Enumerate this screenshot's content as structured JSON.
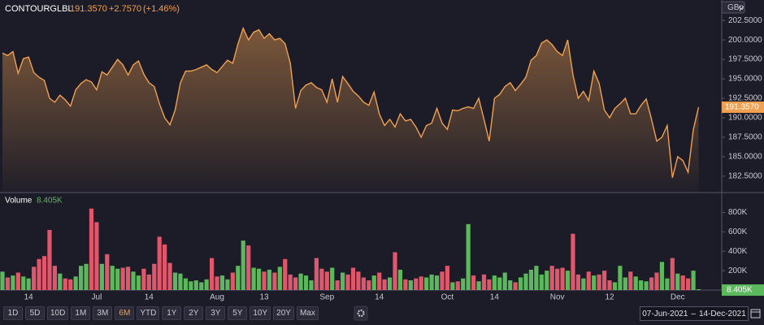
{
  "chart_data": [
    {
      "type": "line",
      "categories": [
        null,
        null,
        null,
        null,
        null,
        "14",
        null,
        null,
        null,
        null,
        null,
        null,
        null,
        null,
        null,
        null,
        null,
        null,
        "Jul",
        null,
        null,
        null,
        null,
        null,
        null,
        null,
        null,
        null,
        "14",
        null,
        null,
        null,
        null,
        null,
        null,
        null,
        null,
        null,
        null,
        null,
        null,
        "Aug",
        null,
        null,
        null,
        null,
        null,
        null,
        null,
        null,
        "13",
        null,
        null,
        null,
        null,
        null,
        null,
        null,
        null,
        null,
        null,
        null,
        "Sep",
        null,
        null,
        null,
        null,
        null,
        null,
        null,
        null,
        null,
        "14",
        null,
        null,
        null,
        null,
        null,
        null,
        null,
        null,
        null,
        null,
        null,
        null,
        "Oct",
        null,
        null,
        null,
        null,
        null,
        null,
        null,
        null,
        "14",
        null,
        null,
        null,
        null,
        null,
        null,
        null,
        null,
        null,
        null,
        null,
        "Nov",
        null,
        null,
        null,
        null,
        null,
        null,
        null,
        null,
        null,
        "12",
        null,
        null,
        null,
        null,
        null,
        null,
        null,
        null,
        null,
        null,
        null,
        null,
        "Dec",
        null,
        null,
        null,
        null
      ],
      "series": [
        {
          "name": "CONTOURGLBL",
          "color": "#f0a050",
          "values": [
            198.3,
            198.0,
            198.5,
            195.7,
            197.6,
            197.8,
            195.8,
            195.2,
            194.8,
            192.5,
            192.0,
            192.9,
            192.3,
            191.5,
            193.6,
            194.4,
            194.9,
            194.6,
            193.6,
            195.9,
            195.5,
            196.5,
            197.5,
            196.8,
            195.5,
            196.8,
            197.3,
            195.6,
            194.5,
            194.0,
            191.8,
            190.0,
            189.1,
            191.0,
            194.5,
            196.0,
            196.0,
            196.2,
            196.5,
            196.8,
            196.2,
            195.8,
            196.6,
            197.4,
            197.0,
            199.5,
            201.5,
            200.0,
            201.0,
            201.3,
            200.2,
            200.8,
            200.0,
            200.2,
            199.5,
            197.0,
            191.2,
            193.5,
            194.2,
            194.5,
            193.9,
            193.6,
            192.0,
            195.0,
            192.0,
            195.3,
            194.4,
            193.4,
            192.8,
            192.0,
            191.6,
            193.3,
            190.5,
            189.0,
            189.8,
            188.8,
            190.5,
            189.6,
            189.8,
            188.8,
            187.5,
            189.0,
            189.3,
            191.2,
            189.3,
            188.5,
            191.0,
            190.9,
            191.2,
            191.4,
            191.2,
            192.5,
            189.8,
            187.0,
            192.5,
            193.0,
            194.0,
            194.5,
            193.5,
            194.3,
            195.2,
            197.4,
            198.0,
            199.6,
            200.0,
            199.4,
            198.5,
            198.0,
            200.0,
            195.5,
            192.5,
            193.4,
            192.2,
            196.0,
            194.4,
            191.0,
            190.0,
            191.2,
            191.8,
            192.5,
            190.5,
            190.5,
            191.6,
            192.4,
            189.8,
            187.0,
            187.5,
            189.0,
            182.3,
            185.0,
            184.5,
            183.0,
            188.5,
            191.357
          ]
        }
      ],
      "last_label": "191.3570",
      "change": "+2.7570",
      "change_pct": "(+1.46%)",
      "unit": "GBp",
      "ylim": [
        180.39,
        205.13
      ],
      "yticks": [
        {
          "value": 182.5,
          "label": "182.5000"
        },
        {
          "value": 185,
          "label": "185.0000"
        },
        {
          "value": 187.5,
          "label": "187.5000"
        },
        {
          "value": 190,
          "label": "190.0000"
        },
        {
          "value": 192.5,
          "label": "192.5000"
        },
        {
          "value": 195,
          "label": "195.0000"
        },
        {
          "value": 197.5,
          "label": "197.5000"
        },
        {
          "value": 200,
          "label": "200.0000"
        },
        {
          "value": 202.5,
          "label": "202.5000"
        }
      ]
    },
    {
      "type": "bar",
      "title": "Volume",
      "value_label": "8.405K",
      "up_color": "#5cb85c",
      "down_color": "#e0566a",
      "values": [
        190000,
        130000,
        150000,
        180000,
        140000,
        120000,
        240000,
        320000,
        350000,
        620000,
        250000,
        170000,
        120000,
        110000,
        140000,
        250000,
        270000,
        840000,
        700000,
        270000,
        370000,
        250000,
        220000,
        230000,
        240000,
        190000,
        150000,
        220000,
        160000,
        270000,
        550000,
        470000,
        280000,
        180000,
        170000,
        120000,
        90000,
        100000,
        80000,
        110000,
        330000,
        140000,
        150000,
        110000,
        180000,
        250000,
        510000,
        460000,
        230000,
        220000,
        190000,
        210000,
        180000,
        240000,
        320000,
        160000,
        130000,
        170000,
        150000,
        100000,
        330000,
        220000,
        190000,
        230000,
        100000,
        180000,
        160000,
        230000,
        190000,
        130000,
        100000,
        150000,
        180000,
        110000,
        130000,
        390000,
        210000,
        110000,
        100000,
        120000,
        140000,
        130000,
        160000,
        150000,
        190000,
        250000,
        80000,
        90000,
        120000,
        680000,
        150000,
        90000,
        160000,
        110000,
        150000,
        130000,
        180000,
        100000,
        80000,
        130000,
        170000,
        210000,
        250000,
        160000,
        200000,
        250000,
        220000,
        230000,
        200000,
        580000,
        160000,
        120000,
        190000,
        150000,
        160000,
        200000,
        100000,
        80000,
        250000,
        130000,
        190000,
        140000,
        100000,
        90000,
        130000,
        180000,
        290000,
        120000,
        330000,
        170000,
        150000,
        120000,
        200000,
        8405
      ],
      "ylim": [
        0,
        980000
      ],
      "yticks": [
        {
          "value": 200000,
          "label": "200K"
        },
        {
          "value": 400000,
          "label": "400K"
        },
        {
          "value": 600000,
          "label": "600K"
        },
        {
          "value": 800000,
          "label": "800K"
        }
      ]
    }
  ],
  "toolbar": {
    "buttons": [
      "1D",
      "5D",
      "10D",
      "1M",
      "3M",
      "6M",
      "YTD",
      "1Y",
      "2Y",
      "3Y",
      "5Y",
      "10Y",
      "20Y",
      "Max"
    ],
    "active_button": 5
  },
  "date_range": {
    "from": "07-Jun-2021",
    "separator": "–",
    "to": "14-Dec-2021"
  }
}
